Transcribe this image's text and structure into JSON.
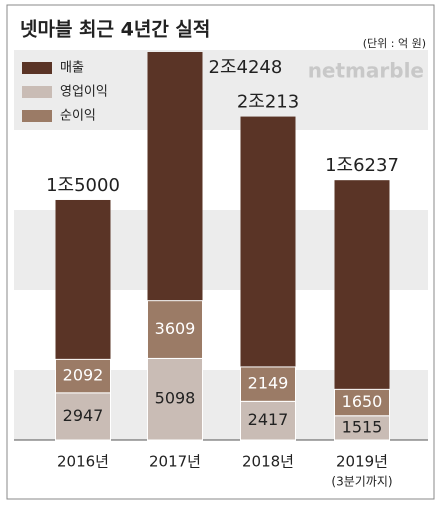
{
  "chart_data": {
    "type": "bar",
    "title": "넷마블 최근 4년간 실적",
    "unit_label": "(단위 : 억 원)",
    "logo": "netmarble",
    "categories": [
      "2016년",
      "2017년",
      "2018년",
      "2019년"
    ],
    "category_notes": [
      null,
      null,
      null,
      "(3분기까지)"
    ],
    "series": [
      {
        "name": "매출",
        "color": "#5a3426",
        "values": [
          15000,
          24248,
          20213,
          16237
        ],
        "value_labels": [
          "1조5000",
          "2조4248",
          "2조213",
          "1조6237"
        ]
      },
      {
        "name": "영업이익",
        "color": "#c9bcb5",
        "values": [
          2947,
          5098,
          2417,
          1515
        ]
      },
      {
        "name": "순이익",
        "color": "#9b7b66",
        "values": [
          2092,
          3609,
          2149,
          1650
        ]
      }
    ]
  }
}
